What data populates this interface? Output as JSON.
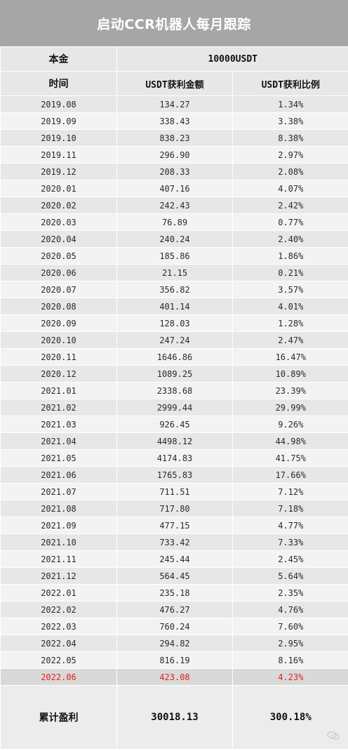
{
  "title": "启动CCR机器人每月跟踪",
  "principal": {
    "label": "本金",
    "value": "10000USDT"
  },
  "columns": {
    "time": "时间",
    "profit": "USDT获利金额",
    "ratio": "USDT获利比例"
  },
  "rows": [
    [
      "2019.08",
      "134.27",
      "1.34%"
    ],
    [
      "2019.09",
      "338.43",
      "3.38%"
    ],
    [
      "2019.10",
      "838.23",
      "8.38%"
    ],
    [
      "2019.11",
      "296.90",
      "2.97%"
    ],
    [
      "2019.12",
      "208.33",
      "2.08%"
    ],
    [
      "2020.01",
      "407.16",
      "4.07%"
    ],
    [
      "2020.02",
      "242.43",
      "2.42%"
    ],
    [
      "2020.03",
      "76.89",
      "0.77%"
    ],
    [
      "2020.04",
      "240.24",
      "2.40%"
    ],
    [
      "2020.05",
      "185.86",
      "1.86%"
    ],
    [
      "2020.06",
      "21.15",
      "0.21%"
    ],
    [
      "2020.07",
      "356.82",
      "3.57%"
    ],
    [
      "2020.08",
      "401.14",
      "4.01%"
    ],
    [
      "2020.09",
      "128.03",
      "1.28%"
    ],
    [
      "2020.10",
      "247.24",
      "2.47%"
    ],
    [
      "2020.11",
      "1646.86",
      "16.47%"
    ],
    [
      "2020.12",
      "1089.25",
      "10.89%"
    ],
    [
      "2021.01",
      "2338.68",
      "23.39%"
    ],
    [
      "2021.02",
      "2999.44",
      "29.99%"
    ],
    [
      "2021.03",
      "926.45",
      "9.26%"
    ],
    [
      "2021.04",
      "4498.12",
      "44.98%"
    ],
    [
      "2021.05",
      "4174.83",
      "41.75%"
    ],
    [
      "2021.06",
      "1765.83",
      "17.66%"
    ],
    [
      "2021.07",
      "711.51",
      "7.12%"
    ],
    [
      "2021.08",
      "717.80",
      "7.18%"
    ],
    [
      "2021.09",
      "477.15",
      "4.77%"
    ],
    [
      "2021.10",
      "733.42",
      "7.33%"
    ],
    [
      "2021.11",
      "245.44",
      "2.45%"
    ],
    [
      "2021.12",
      "564.45",
      "5.64%"
    ],
    [
      "2022.01",
      "235.18",
      "2.35%"
    ],
    [
      "2022.02",
      "476.27",
      "4.76%"
    ],
    [
      "2022.03",
      "760.24",
      "7.60%"
    ],
    [
      "2022.04",
      "294.82",
      "2.95%"
    ],
    [
      "2022.05",
      "816.19",
      "8.16%"
    ],
    [
      "2022.06",
      "423.08",
      "4.23%"
    ]
  ],
  "total": {
    "label": "累计盈利",
    "profit": "30018.13",
    "ratio": "300.18%"
  },
  "colors": {
    "header_bg": "#a6a6a6",
    "highlight_text": "#e0201d"
  },
  "watermark": {
    "icon": "wechat-icon"
  }
}
